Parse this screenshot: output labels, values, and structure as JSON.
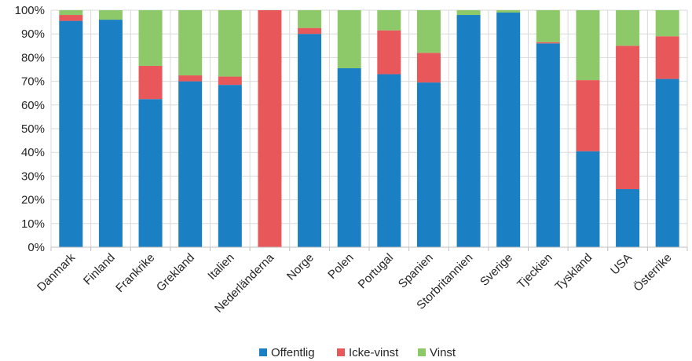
{
  "chart_data": {
    "type": "bar",
    "stacked": true,
    "percent_stacked": true,
    "categories": [
      "Danmark",
      "Finland",
      "Frankrike",
      "Grekland",
      "Italien",
      "Nederländerna",
      "Norge",
      "Polen",
      "Portugal",
      "Spanien",
      "Storbritannien",
      "Sverige",
      "Tjeckien",
      "Tyskland",
      "USA",
      "Österrike"
    ],
    "series": [
      {
        "name": "Offentlig",
        "color": "#1b7fc4",
        "values": [
          95.5,
          96,
          62.5,
          70,
          68.5,
          0,
          90,
          75.5,
          73,
          69.5,
          98,
          99,
          86,
          40.5,
          24.5,
          71
        ]
      },
      {
        "name": "Icke-vinst",
        "color": "#e8585a",
        "values": [
          2.5,
          0,
          14,
          2.5,
          3.5,
          100,
          2.5,
          0,
          18.5,
          12.5,
          0,
          0,
          0.5,
          30,
          60.5,
          18
        ]
      },
      {
        "name": "Vinst",
        "color": "#8dc968",
        "values": [
          2,
          4,
          23.5,
          27.5,
          28,
          0,
          7.5,
          24.5,
          8.5,
          18,
          2,
          1,
          13.5,
          29.5,
          15,
          11
        ]
      }
    ],
    "ylim": [
      0,
      100
    ],
    "yticks": [
      "0%",
      "10%",
      "20%",
      "30%",
      "40%",
      "50%",
      "60%",
      "70%",
      "80%",
      "90%",
      "100%"
    ],
    "grid": true,
    "legend_position": "bottom"
  }
}
